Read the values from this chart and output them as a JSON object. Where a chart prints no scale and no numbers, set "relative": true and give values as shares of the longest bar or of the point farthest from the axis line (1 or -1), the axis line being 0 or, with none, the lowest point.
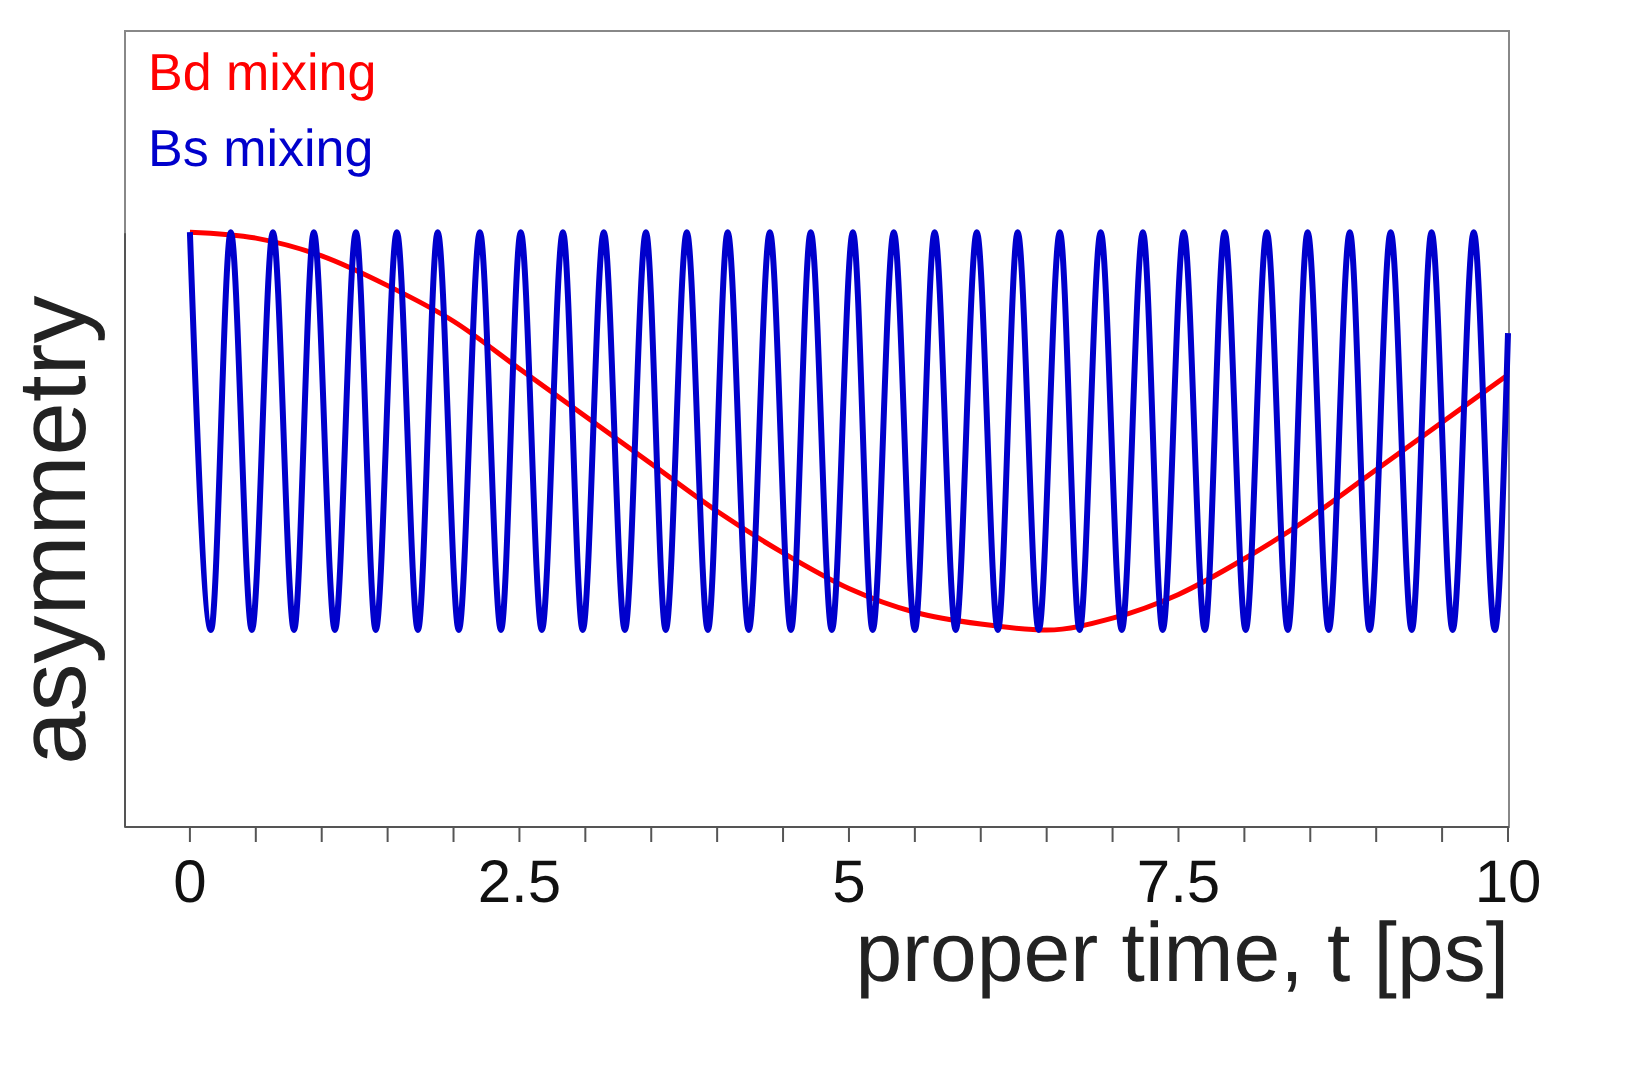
{
  "chart_data": {
    "type": "line",
    "relative": true,
    "xlabel": "proper time, t [ps]",
    "ylabel": "asymmetry",
    "xlim": [
      -0.5,
      10
    ],
    "xticks": [
      0,
      {
        "value": 0.5,
        "label": null
      },
      {
        "value": 1,
        "label": null
      },
      {
        "value": 1.5,
        "label": null
      },
      {
        "value": 2,
        "label": null
      },
      2.5,
      {
        "value": 3,
        "label": null
      },
      {
        "value": 3.5,
        "label": null
      },
      {
        "value": 4,
        "label": null
      },
      {
        "value": 4.5,
        "label": null
      },
      5,
      {
        "value": 5.5,
        "label": null
      },
      {
        "value": 6,
        "label": null
      },
      {
        "value": 6.5,
        "label": null
      },
      {
        "value": 7,
        "label": null
      },
      7.5,
      {
        "value": 8,
        "label": null
      },
      {
        "value": 8.5,
        "label": null
      },
      {
        "value": 9,
        "label": null
      },
      {
        "value": 9.5,
        "label": null
      },
      10
    ],
    "grid": false,
    "legend": "top left",
    "marker": "none",
    "line_style": "solid",
    "series": [
      {
        "name": "Bd mixing",
        "color": "#ff0000",
        "x": [
          0,
          0.5,
          1,
          1.5,
          2,
          2.5,
          3,
          3.5,
          4,
          4.5,
          5,
          5.5,
          6,
          6.5,
          7,
          7.5,
          8,
          8.5,
          9,
          9.5,
          10
        ],
        "values": [
          1.0,
          0.99,
          0.96,
          0.91,
          0.85,
          0.77,
          0.69,
          0.61,
          0.53,
          0.46,
          0.4,
          0.36,
          0.34,
          0.33,
          0.35,
          0.39,
          0.45,
          0.52,
          0.6,
          0.68,
          0.76
        ]
      },
      {
        "name": "Bs mixing",
        "color": "#0000cc",
        "x": [
          0,
          0.16,
          0.31,
          0.47,
          0.63,
          0.79,
          0.94,
          1.1,
          1.26,
          1.41,
          1.57,
          1.73,
          1.88,
          2.04,
          2.2,
          2.36,
          2.51,
          2.67,
          2.83,
          2.98,
          3.14,
          3.3,
          3.46,
          3.61,
          3.77,
          3.93,
          4.08,
          4.24,
          4.4,
          4.56,
          4.71,
          4.87,
          5.03,
          5.18,
          5.34,
          5.5,
          5.65,
          5.81,
          5.97,
          6.13,
          6.28,
          6.44,
          6.6,
          6.75,
          6.91,
          7.07,
          7.23,
          7.38,
          7.54,
          7.7,
          7.85,
          8.01,
          8.17,
          8.33,
          8.48,
          8.64,
          8.8,
          8.95,
          9.11,
          9.27,
          9.42,
          9.58,
          9.74,
          9.9,
          10
        ],
        "values": [
          1,
          0.33,
          1,
          0.33,
          1,
          0.33,
          1,
          0.33,
          1,
          0.33,
          1,
          0.33,
          1,
          0.33,
          1,
          0.33,
          1,
          0.33,
          1,
          0.33,
          1,
          0.33,
          1,
          0.33,
          1,
          0.33,
          1,
          0.33,
          1,
          0.33,
          1,
          0.33,
          1,
          0.33,
          1,
          0.33,
          1,
          0.33,
          1,
          0.33,
          1,
          0.33,
          1,
          0.33,
          1,
          0.33,
          1,
          0.33,
          1,
          0.33,
          1,
          0.33,
          1,
          0.33,
          1,
          0.33,
          1,
          0.33,
          1,
          0.33,
          1,
          0.33,
          1,
          0.33,
          0.83
        ]
      }
    ]
  }
}
